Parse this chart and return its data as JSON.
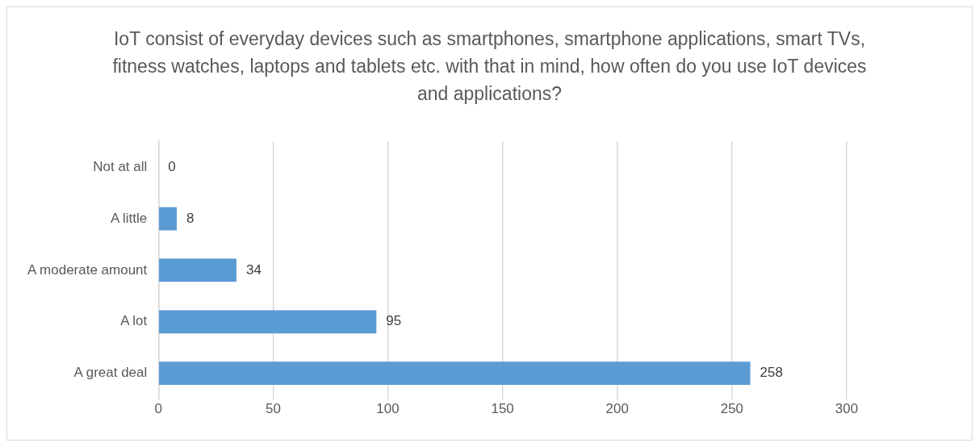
{
  "chart_data": {
    "type": "bar",
    "orientation": "horizontal",
    "title": "IoT consist of everyday devices such as smartphones, smartphone applications, smart TVs, fitness watches, laptops and tablets etc. with that in mind, how often do you use IoT devices and applications?",
    "categories": [
      "Not at all",
      "A little",
      "A moderate amount",
      "A lot",
      "A great deal"
    ],
    "values": [
      0,
      8,
      34,
      95,
      258
    ],
    "color": "#5b9bd5",
    "xlim": [
      0,
      300
    ],
    "xticks": [
      0,
      50,
      100,
      150,
      200,
      250,
      300
    ],
    "grid": "x",
    "legend": false,
    "data_labels": true
  }
}
